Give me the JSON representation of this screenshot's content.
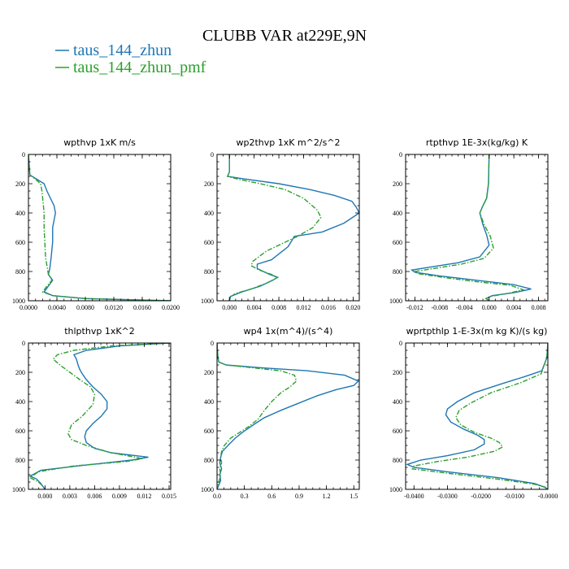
{
  "figure": {
    "title": "CLUBB VAR at229E,9N",
    "legend": [
      {
        "label": "taus_144_zhun",
        "color": "#1f77b4",
        "dash": "solid"
      },
      {
        "label": "taus_144_zhun_pmf",
        "color": "#2ca02c",
        "dash": "dashdot"
      }
    ]
  },
  "chart_data": [
    {
      "type": "line",
      "title": "wpthvp  1xK m/s",
      "xlim": [
        0,
        0.02
      ],
      "ylim": [
        1000,
        0
      ],
      "xticks": [
        0,
        0.004,
        0.008,
        0.012,
        0.016,
        0.02
      ],
      "xticklabels": [
        "0.0000",
        "0.0040",
        "0.0080",
        "0.0120",
        "0.0160",
        "0.0200"
      ],
      "yticks": [
        0,
        200,
        400,
        600,
        800,
        1000
      ],
      "yticklabels": [
        "0",
        "200",
        "400",
        "600",
        "800",
        "1000"
      ],
      "series": [
        {
          "name": "taus_144_zhun",
          "x": [
            0,
            0.0002,
            0.0012,
            0.0022,
            0.0026,
            0.0031,
            0.0036,
            0.0038,
            0.0036,
            0.0034,
            0.0034,
            0.0032,
            0.003,
            0.0028,
            0.0031,
            0.0034,
            0.0028,
            0.0022,
            0.0034,
            0.008,
            0.02
          ],
          "y": [
            0,
            140,
            170,
            200,
            250,
            300,
            350,
            400,
            450,
            500,
            600,
            700,
            780,
            820,
            840,
            860,
            900,
            940,
            965,
            985,
            1000
          ]
        },
        {
          "name": "taus_144_zhun_pmf",
          "x": [
            0,
            0.0002,
            0.001,
            0.0017,
            0.0019,
            0.002,
            0.0021,
            0.0022,
            0.0022,
            0.0023,
            0.0024,
            0.0026,
            0.0028,
            0.0031,
            0.0033,
            0.0026,
            0.002,
            0.0034,
            0.008,
            0.02
          ],
          "y": [
            0,
            140,
            170,
            200,
            250,
            300,
            350,
            400,
            500,
            600,
            700,
            760,
            820,
            840,
            860,
            900,
            940,
            965,
            985,
            1000
          ]
        }
      ]
    },
    {
      "type": "line",
      "title": "wp2thvp  1xK m^2/s^2",
      "xlim": [
        -0.002,
        0.021
      ],
      "ylim": [
        1000,
        0
      ],
      "xticks": [
        0,
        0.004,
        0.008,
        0.012,
        0.016,
        0.02
      ],
      "xticklabels": [
        "0.000",
        "0.004",
        "0.008",
        "0.012",
        "0.016",
        "0.020"
      ],
      "yticks": [
        0,
        200,
        400,
        600,
        800,
        1000
      ],
      "yticklabels": [
        "0",
        "200",
        "400",
        "600",
        "800",
        "1000"
      ],
      "series": [
        {
          "name": "taus_144_zhun",
          "x": [
            0,
            0,
            -0.0003,
            0.002,
            0.008,
            0.013,
            0.017,
            0.0198,
            0.0205,
            0.021,
            0.0185,
            0.015,
            0.0105,
            0.0095,
            0.008,
            0.0068,
            0.0045,
            0.0045,
            0.0065,
            0.0078,
            0.007,
            0.005,
            0.002,
            0.0002,
            0.0
          ],
          "y": [
            0,
            120,
            150,
            165,
            200,
            240,
            280,
            320,
            360,
            400,
            470,
            530,
            560,
            630,
            680,
            720,
            750,
            780,
            820,
            840,
            860,
            900,
            940,
            970,
            1000
          ]
        },
        {
          "name": "taus_144_zhun_pmf",
          "x": [
            0,
            0,
            -0.0003,
            0.0015,
            0.005,
            0.009,
            0.012,
            0.0142,
            0.0148,
            0.0135,
            0.011,
            0.0085,
            0.006,
            0.0038,
            0.0035,
            0.0048,
            0.0068,
            0.0078,
            0.006,
            0.0035,
            0.001,
            0.0001,
            0.0
          ],
          "y": [
            0,
            120,
            150,
            170,
            200,
            240,
            300,
            380,
            430,
            500,
            560,
            610,
            660,
            730,
            760,
            790,
            820,
            840,
            880,
            920,
            950,
            975,
            1000
          ]
        }
      ]
    },
    {
      "type": "line",
      "title": "rtpthvp  1E-3x(kg/kg) K",
      "xlim": [
        -0.0135,
        0.0095
      ],
      "ylim": [
        1000,
        0
      ],
      "xticks": [
        -0.012,
        -0.008,
        -0.004,
        0.0,
        0.004,
        0.008
      ],
      "xticklabels": [
        "-0.012",
        "-0.008",
        "-0.004",
        "0.000",
        "0.004",
        "0.008"
      ],
      "yticks": [
        0,
        200,
        400,
        600,
        800,
        1000
      ],
      "yticklabels": [
        "0",
        "200",
        "400",
        "600",
        "800",
        "1000"
      ],
      "series": [
        {
          "name": "taus_144_zhun",
          "x": [
            0,
            -0.0001,
            -0.0004,
            -0.001,
            -0.0015,
            -0.001,
            -0.0004,
            0.0,
            -0.0015,
            -0.005,
            -0.0095,
            -0.0125,
            -0.012,
            -0.008,
            -0.002,
            0.004,
            0.0068,
            0.004,
            0.0005,
            -0.0005,
            0.0
          ],
          "y": [
            0,
            200,
            300,
            350,
            400,
            480,
            550,
            620,
            700,
            740,
            770,
            790,
            805,
            830,
            860,
            890,
            920,
            945,
            965,
            985,
            1000
          ]
        },
        {
          "name": "taus_144_zhun_pmf",
          "x": [
            0,
            -0.0001,
            -0.0004,
            -0.001,
            -0.0015,
            -0.0008,
            0.0002,
            0.0007,
            -0.0008,
            -0.0045,
            -0.009,
            -0.012,
            -0.0115,
            -0.0075,
            -0.002,
            0.0035,
            0.0055,
            0.003,
            0.0003,
            -0.0005,
            0.0
          ],
          "y": [
            0,
            200,
            300,
            350,
            400,
            480,
            560,
            640,
            710,
            750,
            780,
            800,
            815,
            840,
            870,
            895,
            925,
            950,
            970,
            985,
            1000
          ]
        }
      ]
    },
    {
      "type": "line",
      "title": "thlpthvp  1xK^2",
      "xlim": [
        -0.002,
        0.0152
      ],
      "ylim": [
        1000,
        0
      ],
      "xticks": [
        0,
        0.003,
        0.006,
        0.009,
        0.012,
        0.015
      ],
      "xticklabels": [
        "0.000",
        "0.003",
        "0.006",
        "0.009",
        "0.012",
        "0.015"
      ],
      "yticks": [
        0,
        200,
        400,
        600,
        800,
        1000
      ],
      "yticklabels": [
        "0",
        "200",
        "400",
        "600",
        "800",
        "1000"
      ],
      "series": [
        {
          "name": "taus_144_zhun",
          "x": [
            0.015,
            0.009,
            0.005,
            0.0035,
            0.0038,
            0.004,
            0.0042,
            0.0045,
            0.005,
            0.0058,
            0.0068,
            0.0075,
            0.0075,
            0.0068,
            0.0058,
            0.005,
            0.0048,
            0.005,
            0.006,
            0.008,
            0.0125,
            0.0105,
            0.004,
            -0.0005,
            -0.0018,
            -0.001,
            -0.0005,
            0.0
          ],
          "y": [
            0,
            20,
            50,
            80,
            110,
            150,
            180,
            210,
            250,
            300,
            350,
            400,
            450,
            500,
            550,
            600,
            640,
            680,
            720,
            750,
            780,
            800,
            840,
            870,
            910,
            930,
            960,
            1000
          ]
        },
        {
          "name": "taus_144_zhun_pmf",
          "x": [
            0.0152,
            0.008,
            0.0035,
            0.0015,
            0.001,
            0.0018,
            0.003,
            0.0042,
            0.0055,
            0.006,
            0.0058,
            0.0045,
            0.0032,
            0.0028,
            0.0032,
            0.005,
            0.008,
            0.0118,
            0.0098,
            0.0035,
            -0.0008,
            -0.0018,
            -0.0008,
            -0.0003,
            0.0
          ],
          "y": [
            0,
            20,
            50,
            80,
            110,
            150,
            200,
            250,
            300,
            350,
            420,
            500,
            560,
            620,
            660,
            700,
            750,
            790,
            810,
            840,
            880,
            920,
            950,
            975,
            1000
          ]
        }
      ]
    },
    {
      "type": "line",
      "title": "wp4  1x(m^4)/(s^4)",
      "xlim": [
        0,
        1.56
      ],
      "ylim": [
        1000,
        0
      ],
      "xticks": [
        0,
        0.3,
        0.6,
        0.9,
        1.2,
        1.5
      ],
      "xticklabels": [
        "0.0",
        "0.3",
        "0.6",
        "0.9",
        "1.2",
        "1.5"
      ],
      "yticks": [
        0,
        200,
        400,
        600,
        800,
        1000
      ],
      "yticklabels": [
        "0",
        "200",
        "400",
        "600",
        "800",
        "1000"
      ],
      "series": [
        {
          "name": "taus_144_zhun",
          "x": [
            0,
            0.01,
            0.02,
            0.1,
            0.5,
            1.0,
            1.4,
            1.55,
            1.5,
            1.3,
            1.1,
            0.9,
            0.7,
            0.52,
            0.42,
            0.35,
            0.28,
            0.2,
            0.12,
            0.06,
            0.04,
            0.03,
            0.05,
            0.03,
            0.04,
            0.02,
            0.0
          ],
          "y": [
            0,
            100,
            130,
            150,
            170,
            190,
            220,
            260,
            290,
            320,
            360,
            410,
            460,
            510,
            550,
            580,
            610,
            650,
            700,
            740,
            780,
            820,
            860,
            900,
            940,
            970,
            1000
          ]
        },
        {
          "name": "taus_144_zhun_pmf",
          "x": [
            0,
            0.01,
            0.02,
            0.1,
            0.4,
            0.7,
            0.85,
            0.87,
            0.8,
            0.7,
            0.6,
            0.52,
            0.45,
            0.35,
            0.25,
            0.15,
            0.08,
            0.05,
            0.04,
            0.05,
            0.03,
            0.04,
            0.02,
            0.0
          ],
          "y": [
            0,
            100,
            130,
            150,
            170,
            190,
            220,
            260,
            300,
            340,
            400,
            460,
            520,
            570,
            610,
            650,
            700,
            740,
            780,
            820,
            860,
            900,
            950,
            1000
          ]
        }
      ]
    },
    {
      "type": "line",
      "title": "wprtpthlp  1-E-3x(m kg K)/(s kg)",
      "xlim": [
        -0.0425,
        0.0
      ],
      "ylim": [
        1000,
        0
      ],
      "xticks": [
        -0.04,
        -0.03,
        -0.02,
        -0.01,
        0.0
      ],
      "xticklabels": [
        "-0.0400",
        "-0.0300",
        "-0.0200",
        "-0.0100",
        "-0.0000"
      ],
      "yticks": [
        0,
        200,
        400,
        600,
        800,
        1000
      ],
      "yticklabels": [
        "0",
        "200",
        "400",
        "600",
        "800",
        "1000"
      ],
      "series": [
        {
          "name": "taus_144_zhun",
          "x": [
            0,
            -0.0003,
            -0.0018,
            -0.007,
            -0.014,
            -0.022,
            -0.027,
            -0.03,
            -0.0305,
            -0.029,
            -0.025,
            -0.021,
            -0.019,
            -0.019,
            -0.022,
            -0.03,
            -0.038,
            -0.042,
            -0.04,
            -0.03,
            -0.015,
            -0.004,
            -0.001,
            0.0
          ],
          "y": [
            0,
            100,
            190,
            230,
            280,
            340,
            400,
            450,
            490,
            540,
            590,
            630,
            660,
            690,
            730,
            770,
            800,
            830,
            850,
            880,
            920,
            960,
            985,
            1000
          ]
        },
        {
          "name": "taus_144_zhun_pmf",
          "x": [
            0,
            -0.0003,
            -0.002,
            -0.008,
            -0.017,
            -0.023,
            -0.0265,
            -0.0275,
            -0.026,
            -0.022,
            -0.017,
            -0.0145,
            -0.0135,
            -0.016,
            -0.024,
            -0.033,
            -0.04,
            -0.0405,
            -0.03,
            -0.015,
            -0.004,
            -0.0008,
            0.0
          ],
          "y": [
            0,
            100,
            210,
            270,
            340,
            410,
            460,
            510,
            560,
            610,
            650,
            680,
            710,
            740,
            780,
            810,
            840,
            860,
            890,
            930,
            965,
            985,
            1000
          ]
        }
      ]
    }
  ]
}
